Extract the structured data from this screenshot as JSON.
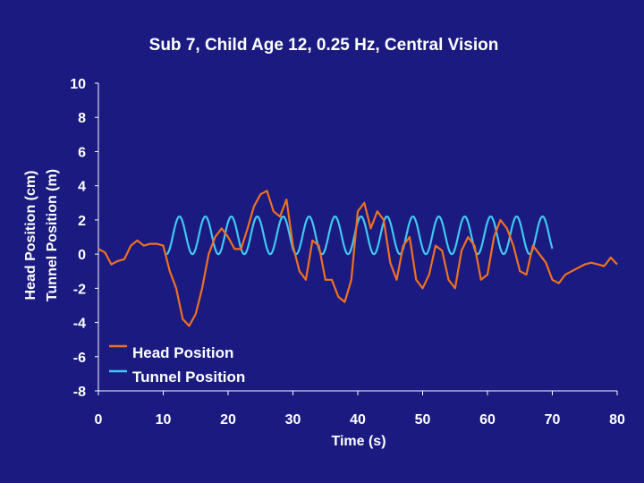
{
  "chart_data": {
    "type": "line",
    "title": "Sub 7, Child Age 12, 0.25 Hz, Central Vision",
    "xlabel": "Time (s)",
    "ylabel": [
      "Head Position (cm)",
      "Tunnel Position (m)"
    ],
    "xlim": [
      0,
      80
    ],
    "ylim": [
      -8,
      10
    ],
    "xticks": [
      "0",
      "10",
      "20",
      "30",
      "40",
      "50",
      "60",
      "70",
      "80"
    ],
    "yticks": [
      "10",
      "8",
      "6",
      "4",
      "2",
      "0",
      "-2",
      "-4",
      "-6",
      "-8"
    ],
    "legend_position": "bottom-left",
    "grid": false,
    "background_color": "#1a1a80",
    "axis_color": "#ffffff",
    "series": [
      {
        "name": "Head Position",
        "color": "#f07020",
        "x": [
          0,
          1,
          2,
          3,
          4,
          5,
          6,
          7,
          8,
          9,
          10,
          11,
          12,
          13,
          14,
          15,
          16,
          17,
          18,
          19,
          20,
          21,
          22,
          23,
          24,
          25,
          26,
          27,
          28,
          29,
          30,
          31,
          32,
          33,
          34,
          35,
          36,
          37,
          38,
          39,
          40,
          41,
          42,
          43,
          44,
          45,
          46,
          47,
          48,
          49,
          50,
          51,
          52,
          53,
          54,
          55,
          56,
          57,
          58,
          59,
          60,
          61,
          62,
          63,
          64,
          65,
          66,
          67,
          68,
          69,
          70,
          71,
          72,
          73,
          74,
          75,
          76,
          77,
          78,
          79,
          80
        ],
        "y": [
          0.3,
          0.1,
          -0.6,
          -0.4,
          -0.3,
          0.5,
          0.8,
          0.5,
          0.6,
          0.6,
          0.5,
          -1.0,
          -2.0,
          -3.8,
          -4.2,
          -3.5,
          -2.0,
          0.0,
          1.0,
          1.5,
          1.0,
          0.3,
          0.3,
          1.5,
          2.8,
          3.5,
          3.7,
          2.5,
          2.2,
          3.2,
          0.5,
          -1.0,
          -1.5,
          0.8,
          0.5,
          -1.5,
          -1.5,
          -2.5,
          -2.8,
          -1.5,
          2.5,
          3.0,
          1.5,
          2.5,
          2.0,
          -0.5,
          -1.5,
          0.5,
          1.0,
          -1.5,
          -2.0,
          -1.2,
          0.5,
          0.2,
          -1.5,
          -2.0,
          0.2,
          1.0,
          0.5,
          -1.5,
          -1.2,
          1.0,
          2.0,
          1.5,
          0.5,
          -1.0,
          -1.2,
          0.5,
          0.0,
          -0.5,
          -1.5,
          -1.7,
          -1.2,
          -1.0,
          -0.8,
          -0.6,
          -0.5,
          -0.6,
          -0.7,
          -0.2,
          -0.6
        ]
      },
      {
        "name": "Tunnel Position",
        "color": "#40c8f0",
        "x_start": 10.5,
        "x_end": 70.0,
        "frequency_hz": 0.25,
        "amplitude": 1.1,
        "offset": 1.1,
        "min": 0.0,
        "max": 2.2
      }
    ]
  }
}
